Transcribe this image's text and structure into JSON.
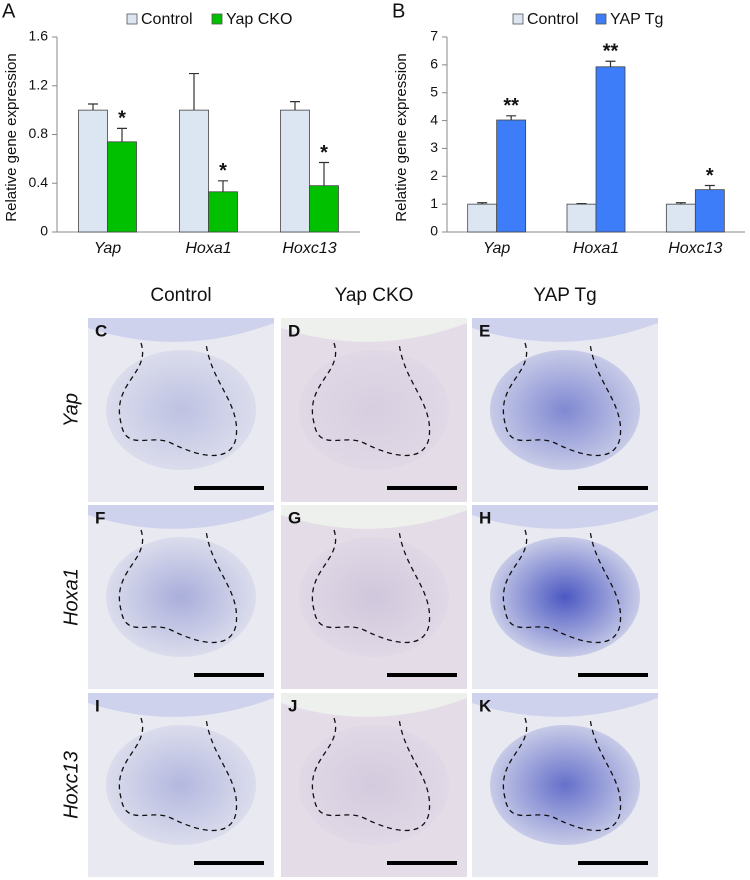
{
  "chart_data": [
    {
      "type": "bar",
      "panel_label": "A",
      "y_label": "Relative gene expression",
      "categories": [
        "Yap",
        "Hoxa1",
        "Hoxc13"
      ],
      "series": [
        {
          "name": "Control",
          "color": "#dce6f2",
          "values": [
            1,
            1,
            1
          ],
          "errors": [
            0.05,
            0.3,
            0.07
          ]
        },
        {
          "name": "Yap CKO",
          "color": "#00c000",
          "values": [
            0.74,
            0.33,
            0.38
          ],
          "errors": [
            0.11,
            0.09,
            0.19
          ],
          "annotations": [
            "*",
            "*",
            "*"
          ]
        }
      ],
      "ylim": [
        0,
        1.6
      ],
      "yticks": [
        0,
        0.4,
        0.8,
        1.2,
        1.6
      ]
    },
    {
      "type": "bar",
      "panel_label": "B",
      "y_label": "Relative gene expression",
      "categories": [
        "Yap",
        "Hoxa1",
        "Hoxc13"
      ],
      "series": [
        {
          "name": "Control",
          "color": "#dce6f2",
          "values": [
            1,
            1,
            1
          ],
          "errors": [
            0.05,
            0.02,
            0.05
          ]
        },
        {
          "name": "YAP Tg",
          "color": "#3d7dfa",
          "values": [
            4.02,
            5.93,
            1.52
          ],
          "errors": [
            0.15,
            0.2,
            0.15
          ],
          "annotations": [
            "**",
            "**",
            "*"
          ]
        }
      ],
      "ylim": [
        0,
        7
      ],
      "yticks": [
        0,
        1,
        2,
        3,
        4,
        5,
        6,
        7
      ]
    }
  ],
  "panels": {
    "columns": [
      "Control",
      "Yap CKO",
      "YAP Tg"
    ],
    "rows": [
      "Yap",
      "Hoxa1",
      "Hoxc13"
    ],
    "letters": [
      [
        "C",
        "D",
        "E"
      ],
      [
        "F",
        "G",
        "H"
      ],
      [
        "I",
        "J",
        "K"
      ]
    ]
  }
}
